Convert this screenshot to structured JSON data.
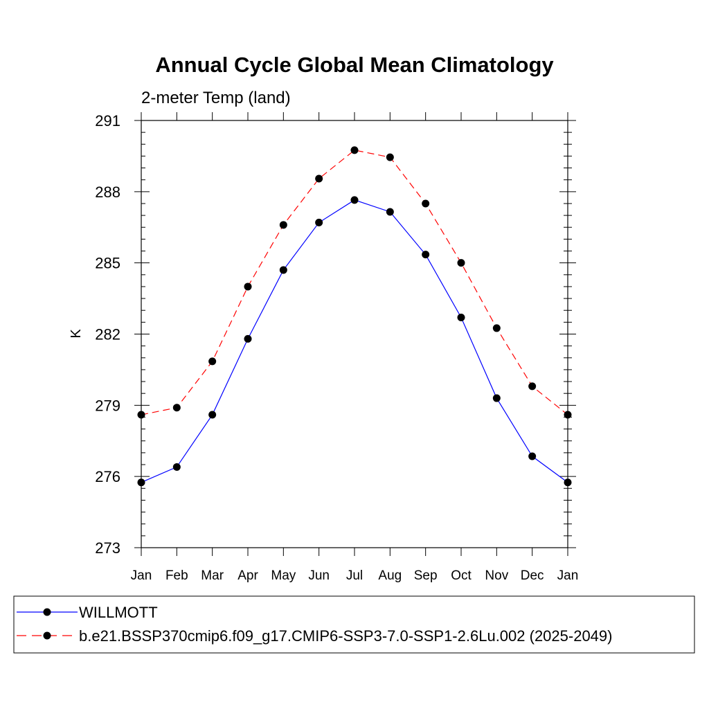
{
  "chart_data": {
    "type": "line",
    "title": "Annual Cycle Global Mean Climatology",
    "subtitle": "2-meter Temp (land)",
    "xlabel": "",
    "ylabel": "K",
    "categories": [
      "Jan",
      "Feb",
      "Mar",
      "Apr",
      "May",
      "Jun",
      "Jul",
      "Aug",
      "Sep",
      "Oct",
      "Nov",
      "Dec",
      "Jan"
    ],
    "ylim": [
      273,
      291
    ],
    "yticks": [
      "273",
      "276",
      "279",
      "282",
      "285",
      "288",
      "291"
    ],
    "yminor_step": 0.5,
    "grid": false,
    "legend_position": "bottom",
    "series": [
      {
        "name": "WILLMOTT",
        "color": "#0000ff",
        "line_style": "solid",
        "marker": "filled-circle",
        "values": [
          275.75,
          276.4,
          278.6,
          281.8,
          284.7,
          286.7,
          287.65,
          287.15,
          285.35,
          282.7,
          279.3,
          276.85,
          275.75
        ]
      },
      {
        "name": "b.e21.BSSP370cmip6.f09_g17.CMIP6-SSP3-7.0-SSP1-2.6Lu.002 (2025-2049)",
        "color": "#ff0000",
        "line_style": "dashed",
        "marker": "filled-circle",
        "values": [
          278.6,
          278.9,
          280.85,
          284.0,
          286.6,
          288.55,
          289.75,
          289.45,
          287.5,
          285.0,
          282.25,
          279.8,
          278.6
        ]
      }
    ]
  }
}
